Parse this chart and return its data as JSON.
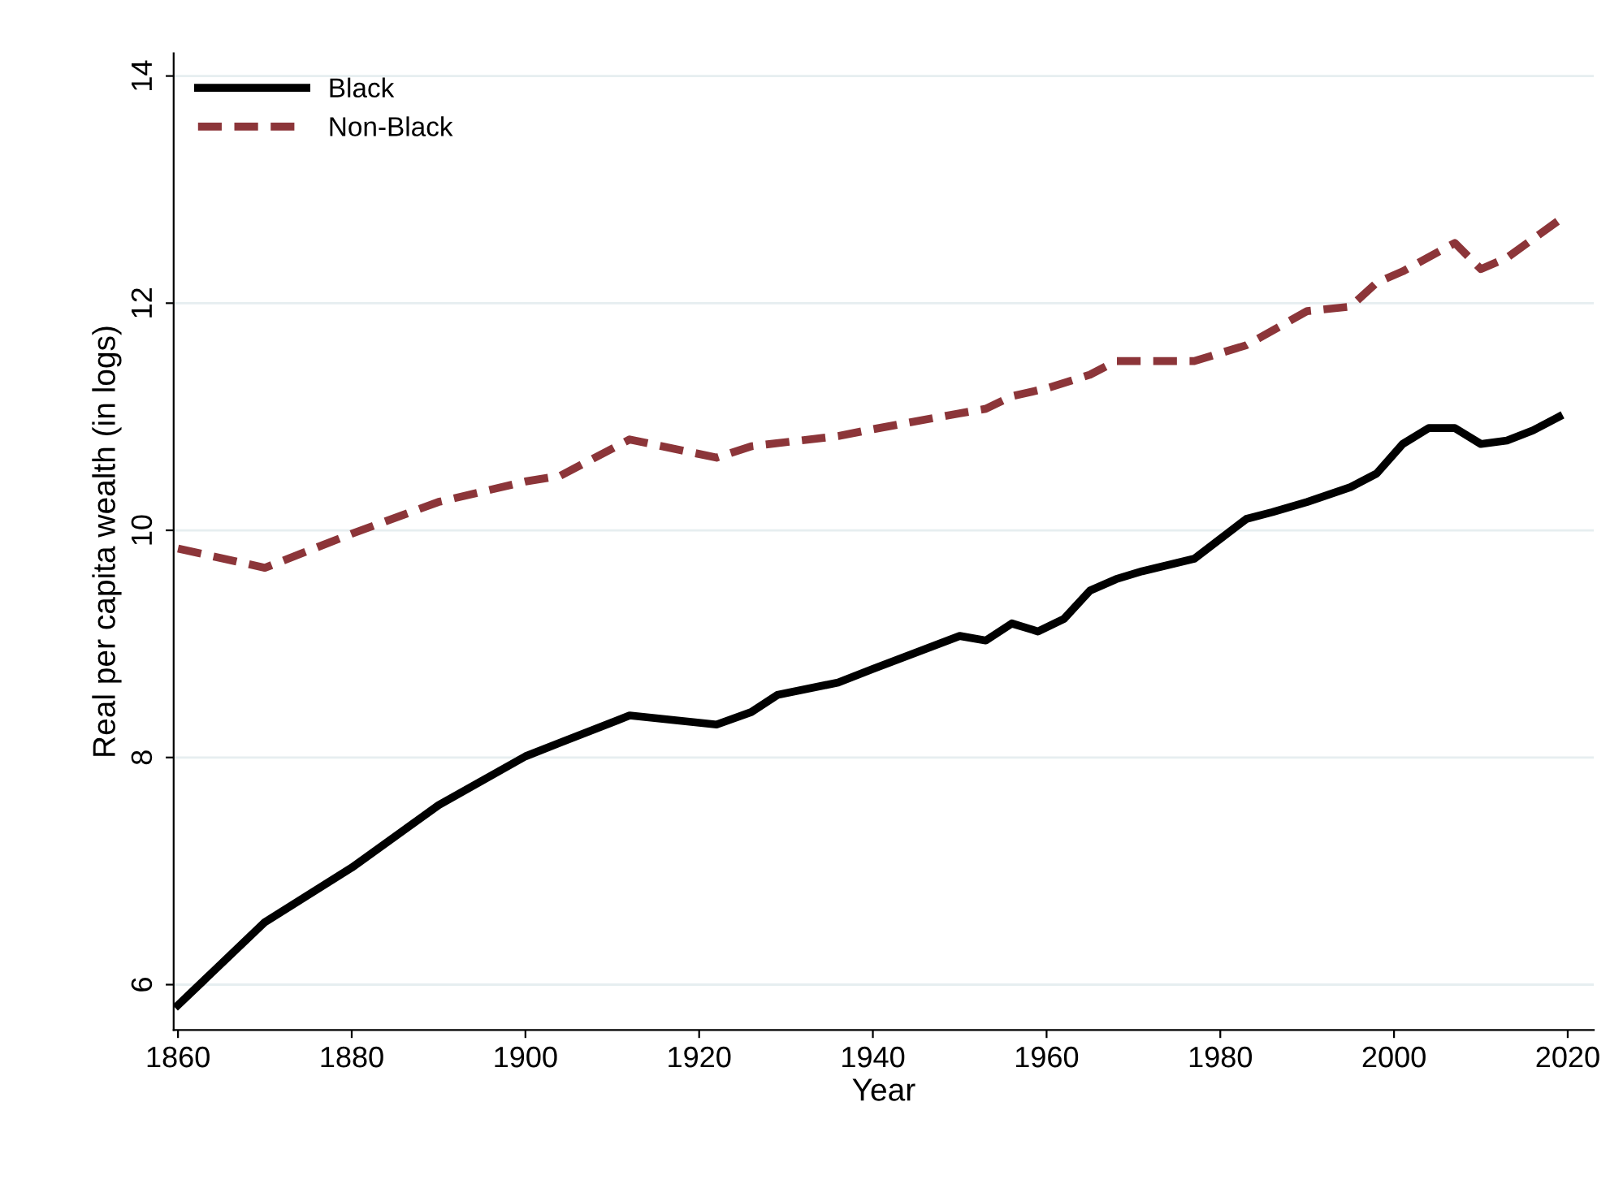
{
  "chart_data": {
    "type": "line",
    "xlabel": "Year",
    "ylabel": "Real per capita wealth (in logs)",
    "xlim": [
      1859.5,
      2023
    ],
    "xticks": [
      1860,
      1880,
      1900,
      1920,
      1940,
      1960,
      1980,
      2000,
      2020
    ],
    "ylim": [
      5.6,
      14.2
    ],
    "yticks": [
      6,
      8,
      10,
      12,
      14
    ],
    "grid": "y",
    "legend": "top left",
    "series": [
      {
        "name": "Black",
        "color": "#000000",
        "line_style": "solid",
        "x": [
          1860,
          1870,
          1880,
          1890,
          1900,
          1904,
          1912,
          1922,
          1926,
          1929,
          1936,
          1940,
          1950,
          1953,
          1956,
          1959,
          1962,
          1965,
          1968,
          1971,
          1977,
          1983,
          1986,
          1990,
          1995,
          1998,
          2001,
          2004,
          2007,
          2010,
          2013,
          2016,
          2019
        ],
        "values": [
          5.82,
          6.55,
          7.03,
          7.58,
          8.01,
          8.13,
          8.37,
          8.29,
          8.4,
          8.55,
          8.66,
          8.78,
          9.07,
          9.03,
          9.18,
          9.11,
          9.22,
          9.47,
          9.57,
          9.64,
          9.75,
          10.1,
          10.16,
          10.25,
          10.38,
          10.5,
          10.76,
          10.9,
          10.9,
          10.76,
          10.79,
          10.88,
          11.0
        ]
      },
      {
        "name": "Non-Black",
        "color": "#8c3539",
        "line_style": "dashed",
        "x": [
          1860,
          1870,
          1880,
          1890,
          1900,
          1904,
          1912,
          1922,
          1926,
          1936,
          1940,
          1950,
          1953,
          1956,
          1960,
          1965,
          1968,
          1977,
          1983,
          1990,
          1995,
          1998,
          2001,
          2007,
          2010,
          2013,
          2019
        ],
        "values": [
          9.84,
          9.67,
          9.97,
          10.25,
          10.43,
          10.48,
          10.8,
          10.64,
          10.74,
          10.83,
          10.89,
          11.03,
          11.07,
          11.18,
          11.25,
          11.37,
          11.49,
          11.49,
          11.63,
          11.93,
          11.97,
          12.18,
          12.28,
          12.53,
          12.3,
          12.4,
          12.73
        ]
      }
    ]
  }
}
